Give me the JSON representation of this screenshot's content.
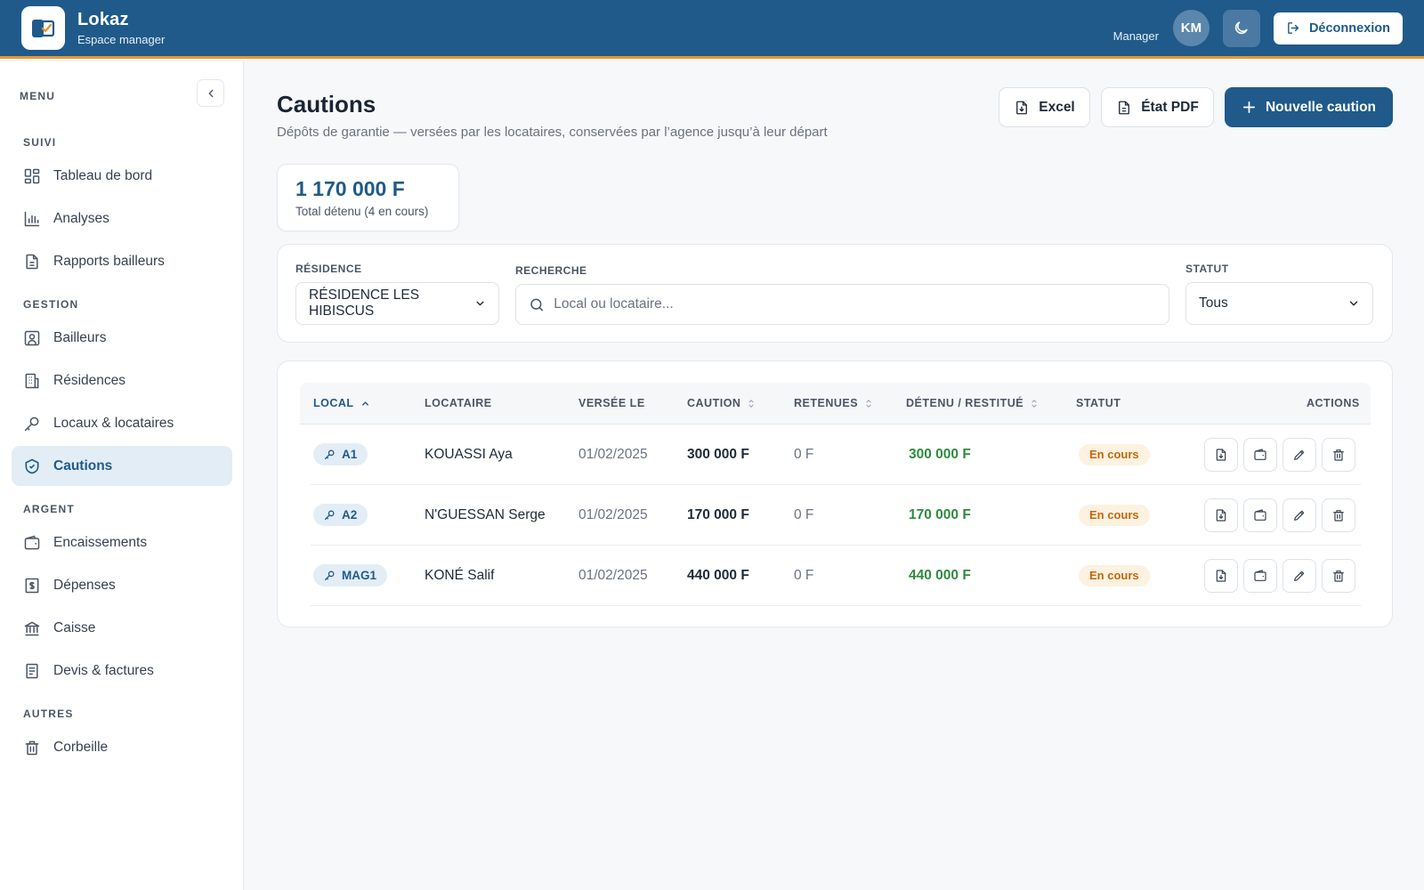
{
  "app": {
    "name": "Lokaz",
    "subtitle": "Espace manager",
    "logo_icon": "lokaz-logo-icon"
  },
  "header": {
    "role": "Manager",
    "avatar_initials": "KM",
    "theme_icon": "moon-icon",
    "logout_label": "Déconnexion"
  },
  "sidebar": {
    "menu_title": "MENU",
    "sections": [
      {
        "title": "SUIVI",
        "items": [
          {
            "label": "Tableau de bord",
            "icon": "dashboard-icon"
          },
          {
            "label": "Analyses",
            "icon": "bar-chart-icon"
          },
          {
            "label": "Rapports bailleurs",
            "icon": "document-icon"
          }
        ]
      },
      {
        "title": "GESTION",
        "items": [
          {
            "label": "Bailleurs",
            "icon": "user-card-icon"
          },
          {
            "label": "Résidences",
            "icon": "building-icon"
          },
          {
            "label": "Locaux & locataires",
            "icon": "key-icon"
          },
          {
            "label": "Cautions",
            "icon": "shield-icon",
            "active": true
          }
        ]
      },
      {
        "title": "ARGENT",
        "items": [
          {
            "label": "Encaissements",
            "icon": "wallet-icon"
          },
          {
            "label": "Dépenses",
            "icon": "receipt-icon"
          },
          {
            "label": "Caisse",
            "icon": "bank-icon"
          },
          {
            "label": "Devis & factures",
            "icon": "invoice-icon"
          }
        ]
      },
      {
        "title": "AUTRES",
        "items": [
          {
            "label": "Corbeille",
            "icon": "trash-icon"
          }
        ]
      }
    ]
  },
  "page": {
    "title": "Cautions",
    "subtitle": "Dépôts de garantie — versées par les locataires, conservées par l’agence jusqu’à leur départ",
    "buttons": {
      "excel": "Excel",
      "pdf": "État PDF",
      "new": "Nouvelle caution"
    }
  },
  "stat": {
    "value": "1 170 000 F",
    "label": "Total détenu (4 en cours)"
  },
  "filters": {
    "residence_label": "RÉSIDENCE",
    "residence_value": "RÉSIDENCE LES HIBISCUS",
    "search_label": "RECHERCHE",
    "search_placeholder": "Local ou locataire...",
    "status_label": "STATUT",
    "status_value": "Tous"
  },
  "table": {
    "columns": {
      "local": "LOCAL",
      "locataire": "LOCATAIRE",
      "versee": "VERSÉE LE",
      "caution": "CAUTION",
      "retenues": "RETENUES",
      "detenu": "DÉTENU / RESTITUÉ",
      "statut": "STATUT",
      "actions": "ACTIONS"
    },
    "rows": [
      {
        "local": "A1",
        "locataire": "KOUASSI Aya",
        "versee": "01/02/2025",
        "caution": "300 000 F",
        "retenues": "0 F",
        "detenu": "300 000 F",
        "statut": "En cours"
      },
      {
        "local": "A2",
        "locataire": "N'GUESSAN Serge",
        "versee": "01/02/2025",
        "caution": "170 000 F",
        "retenues": "0 F",
        "detenu": "170 000 F",
        "statut": "En cours"
      },
      {
        "local": "MAG1",
        "locataire": "KONÉ Salif",
        "versee": "01/02/2025",
        "caution": "440 000 F",
        "retenues": "0 F",
        "detenu": "440 000 F",
        "statut": "En cours"
      }
    ]
  },
  "colors": {
    "primary": "#1f5a8a",
    "accent": "#e8962e",
    "success": "#2e8b3e",
    "warning": "#c2680c"
  }
}
